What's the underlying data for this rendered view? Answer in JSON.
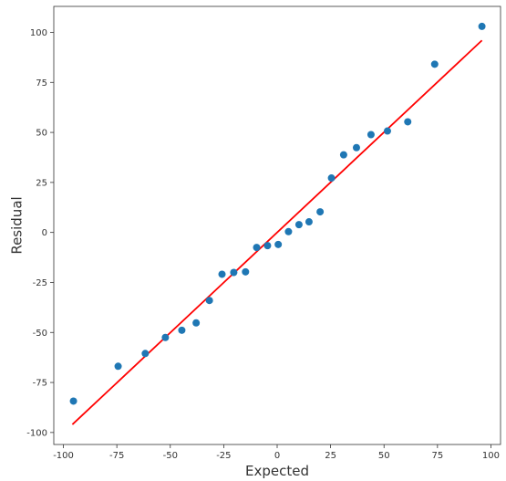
{
  "chart_data": {
    "type": "scatter",
    "title": "",
    "xlabel": "Expected",
    "ylabel": "Residual",
    "xlim": [
      -104.5,
      104.5
    ],
    "ylim": [
      -106,
      113
    ],
    "xticks": [
      -100,
      -75,
      -50,
      -25,
      0,
      25,
      50,
      75,
      100
    ],
    "yticks": [
      -100,
      -75,
      -50,
      -25,
      0,
      25,
      50,
      75,
      100
    ],
    "grid": false,
    "legend": "none",
    "series": [
      {
        "kind": "points",
        "color": "#1f77b4",
        "x": [
          -95.3,
          -74.4,
          -61.7,
          -52.3,
          -44.6,
          -37.9,
          -31.7,
          -25.8,
          -20.3,
          -14.8,
          -9.6,
          -4.5,
          0.5,
          5.3,
          10.2,
          14.9,
          20.1,
          25.4,
          31.1,
          37.1,
          43.9,
          51.6,
          61.1,
          73.7,
          95.8
        ],
        "y": [
          -84.3,
          -66.9,
          -60.5,
          -52.5,
          -48.9,
          -45.2,
          -34.0,
          -20.9,
          -20.0,
          -19.7,
          -7.5,
          -6.6,
          -6.0,
          0.4,
          3.9,
          5.3,
          10.3,
          27.2,
          38.8,
          42.4,
          48.9,
          50.7,
          55.3,
          84.1,
          103.0
        ]
      },
      {
        "kind": "line",
        "color": "#ff0000",
        "x": [
          -95.8,
          95.8
        ],
        "y": [
          -96.0,
          96.0
        ]
      }
    ]
  }
}
